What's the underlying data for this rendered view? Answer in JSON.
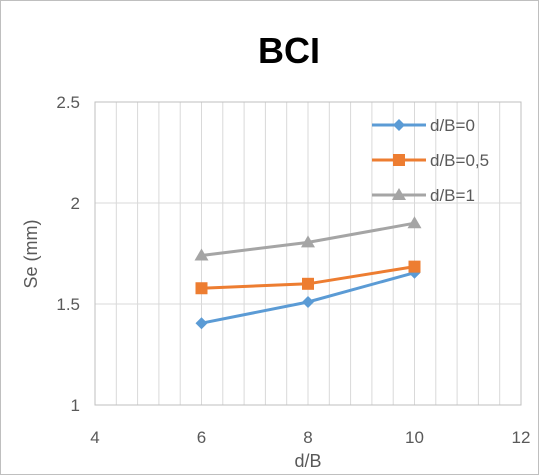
{
  "chart_data": {
    "type": "line",
    "title": "BCI",
    "xlabel": "d/B",
    "ylabel": "Se (mm)",
    "xlim": [
      4,
      12
    ],
    "ylim": [
      1,
      2.5
    ],
    "x_ticks": [
      "4",
      "6",
      "8",
      "10",
      "12"
    ],
    "y_ticks": [
      "1",
      "1.5",
      "2",
      "2.5"
    ],
    "grid": "vertical minor + horizontal major",
    "legend_position": "top-right",
    "series": [
      {
        "name": "d/B=0",
        "color": "#5b9bd5",
        "marker": "diamond",
        "x": [
          6,
          8,
          10
        ],
        "y": [
          1.405,
          1.51,
          1.655
        ]
      },
      {
        "name": "d/B=0,5",
        "color": "#ed7d31",
        "marker": "square",
        "x": [
          6,
          8,
          10
        ],
        "y": [
          1.578,
          1.6,
          1.685
        ]
      },
      {
        "name": "d/B=1",
        "color": "#a5a5a5",
        "marker": "triangle",
        "x": [
          6,
          8,
          10
        ],
        "y": [
          1.74,
          1.805,
          1.9
        ]
      }
    ]
  }
}
